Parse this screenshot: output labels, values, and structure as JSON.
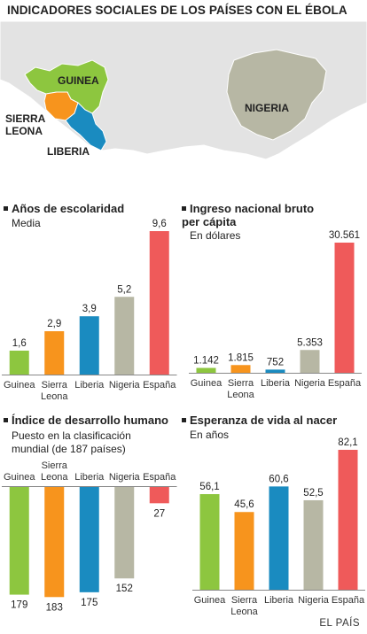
{
  "title": "INDICADORES SOCIALES DE LOS PAÍSES CON EL ÉBOLA",
  "map": {
    "labels": [
      "GUINEA",
      "SIERRA LEONA",
      "LIBERIA",
      "NIGERIA"
    ],
    "colors": {
      "guinea": "#8dc63f",
      "sierra_leona": "#f7941d",
      "liberia": "#1a8bc0",
      "nigeria": "#b7b7a4",
      "land": "#e6e6e6",
      "sea": "#ffffff"
    }
  },
  "source": "EL PAÍS",
  "colors": [
    "#8dc63f",
    "#f7941d",
    "#1a8bc0",
    "#b7b7a4",
    "#ef5a5a"
  ],
  "chart_data": [
    {
      "type": "bar",
      "title": "Años de escolaridad",
      "subtitle": "Media",
      "categories": [
        "Guinea",
        "Sierra Leona",
        "Liberia",
        "Nigeria",
        "España"
      ],
      "values": [
        1.6,
        2.9,
        3.9,
        5.2,
        9.6
      ],
      "labels": [
        "1,6",
        "2,9",
        "3,9",
        "5,2",
        "9,6"
      ],
      "ylim": [
        0,
        9.6
      ]
    },
    {
      "type": "bar",
      "title": "Ingreso nacional bruto per cápita",
      "subtitle": "En dólares",
      "categories": [
        "Guinea",
        "Sierra Leona",
        "Liberia",
        "Nigeria",
        "España"
      ],
      "values": [
        1142,
        1815,
        752,
        5353,
        30561
      ],
      "labels": [
        "1.142",
        "1.815",
        "752",
        "5.353",
        "30.561"
      ],
      "ylim": [
        0,
        30561
      ]
    },
    {
      "type": "bar",
      "orientation": "downward",
      "title": "Índice de desarrollo humano",
      "subtitle": "Puesto en la clasificación mundial (de 187 países)",
      "categories": [
        "Guinea",
        "Sierra Leona",
        "Liberia",
        "Nigeria",
        "España"
      ],
      "values": [
        179,
        183,
        175,
        152,
        27
      ],
      "labels": [
        "179",
        "183",
        "175",
        "152",
        "27"
      ],
      "ylim": [
        0,
        187
      ]
    },
    {
      "type": "bar",
      "title": "Esperanza de vida al nacer",
      "subtitle": "En años",
      "categories": [
        "Guinea",
        "Sierra Leona",
        "Liberia",
        "Nigeria",
        "España"
      ],
      "values": [
        56.1,
        45.6,
        60.6,
        52.5,
        82.1
      ],
      "labels": [
        "56,1",
        "45,6",
        "60,6",
        "52,5",
        "82,1"
      ],
      "ylim": [
        0,
        82.1
      ]
    }
  ]
}
